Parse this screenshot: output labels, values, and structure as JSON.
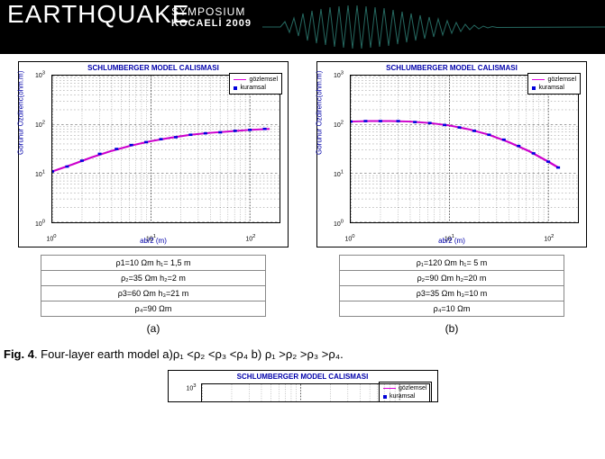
{
  "banner": {
    "main": "EARTHQUAKE",
    "sub": "SYMPOSIUM",
    "sub2": "KOCAELİ 2009"
  },
  "common": {
    "chart_title": "SCHLUMBERGER MODEL CALISMASI",
    "xlabel": "ab/2 (m)",
    "ylabel": "Gorunur Ozdirenc(ohm.m)",
    "legend1": "gözlemsel",
    "legend2": "kuramsal",
    "xticks": [
      "10^0",
      "10^1",
      "10^2"
    ],
    "yticks": [
      "10^0",
      "10^1",
      "10^2",
      "10^3"
    ],
    "xlim": [
      0,
      2
    ],
    "ylim": [
      0,
      3
    ],
    "colors": {
      "curve": "#cc00cc",
      "points": "#0000dd",
      "axis_text": "#0000aa",
      "grid": "#000000",
      "bg": "#ffffff"
    },
    "line_width": 1.2,
    "marker_size": 2,
    "title_fontsize": 8,
    "label_fontsize": 8,
    "tick_fontsize": 7
  },
  "panelA": {
    "params": [
      "ρ1=10 Ωm    h₁= 1,5 m",
      "ρ₂=35 Ωm    h₂=2 m",
      "ρ3=60 Ωm    h₃=21 m",
      "ρ₄=90 Ωm"
    ],
    "subcap": "(a)",
    "curve_log10": [
      [
        0.0,
        1.04
      ],
      [
        0.2,
        1.18
      ],
      [
        0.4,
        1.33
      ],
      [
        0.6,
        1.46
      ],
      [
        0.8,
        1.57
      ],
      [
        1.0,
        1.66
      ],
      [
        1.2,
        1.73
      ],
      [
        1.4,
        1.79
      ],
      [
        1.6,
        1.83
      ],
      [
        1.8,
        1.86
      ],
      [
        2.0,
        1.89
      ],
      [
        2.2,
        1.91
      ]
    ],
    "points_log10": [
      [
        0.0,
        1.04
      ],
      [
        0.15,
        1.14
      ],
      [
        0.3,
        1.26
      ],
      [
        0.48,
        1.4
      ],
      [
        0.65,
        1.5
      ],
      [
        0.8,
        1.58
      ],
      [
        0.95,
        1.64
      ],
      [
        1.1,
        1.7
      ],
      [
        1.25,
        1.74
      ],
      [
        1.4,
        1.79
      ],
      [
        1.55,
        1.82
      ],
      [
        1.7,
        1.84
      ],
      [
        1.85,
        1.87
      ],
      [
        2.0,
        1.89
      ],
      [
        2.15,
        1.91
      ]
    ]
  },
  "panelB": {
    "params": [
      "ρ₁=120 Ωm    h₁= 5 m",
      "ρ₂=90 Ωm    h₂=20 m",
      "ρ3=35 Ωm    h₃=10 m",
      "ρ₄=10 Ωm"
    ],
    "subcap": "(b)",
    "curve_log10": [
      [
        0.0,
        2.06
      ],
      [
        0.2,
        2.07
      ],
      [
        0.4,
        2.07
      ],
      [
        0.6,
        2.06
      ],
      [
        0.8,
        2.03
      ],
      [
        1.0,
        1.98
      ],
      [
        1.2,
        1.9
      ],
      [
        1.4,
        1.79
      ],
      [
        1.6,
        1.64
      ],
      [
        1.8,
        1.46
      ],
      [
        2.0,
        1.24
      ],
      [
        2.1,
        1.12
      ]
    ],
    "points_log10": [
      [
        0.0,
        2.06
      ],
      [
        0.15,
        2.07
      ],
      [
        0.3,
        2.07
      ],
      [
        0.48,
        2.07
      ],
      [
        0.65,
        2.05
      ],
      [
        0.8,
        2.03
      ],
      [
        0.95,
        1.99
      ],
      [
        1.1,
        1.94
      ],
      [
        1.25,
        1.87
      ],
      [
        1.4,
        1.79
      ],
      [
        1.55,
        1.69
      ],
      [
        1.7,
        1.56
      ],
      [
        1.85,
        1.41
      ],
      [
        2.0,
        1.24
      ],
      [
        2.1,
        1.12
      ]
    ]
  },
  "caption": {
    "label": "Fig. 4",
    "text": ". Four-layer earth model a)ρ₁ <ρ₂ <ρ₃ <ρ₄   b) ρ₁ >ρ₂ >ρ₃  >ρ₄."
  }
}
